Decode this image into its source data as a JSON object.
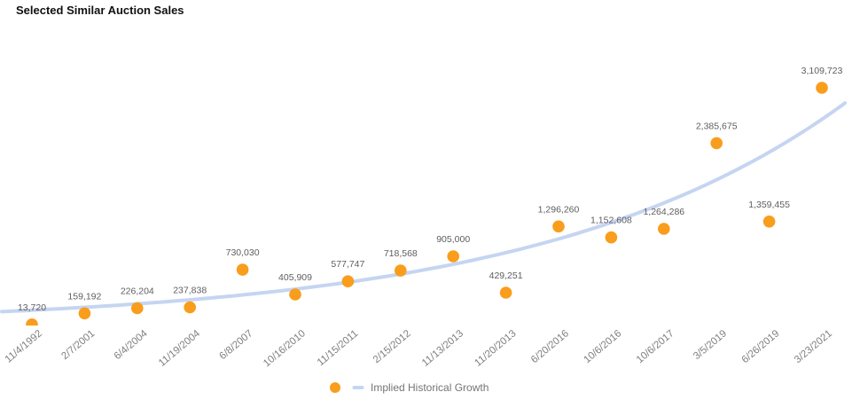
{
  "title": "Selected Similar Auction Sales",
  "legend": {
    "label": "Implied Historical Growth",
    "point_marker": "orange-dot",
    "line_marker": "blue-dash"
  },
  "colors": {
    "point": "#F99D1C",
    "trend_line": "#C5D5F1",
    "data_label": "#5E5E5E",
    "axis_label": "#7F7F7F",
    "legend_label": "#757575",
    "title": "#111111",
    "background": "#FFFFFF"
  },
  "chart_data": {
    "type": "scatter",
    "title": "Selected Similar Auction Sales",
    "xlabel": "",
    "ylabel": "",
    "grid": false,
    "y_axis_visible": false,
    "legend_position": "bottom",
    "x_tick_rotation_deg": -40,
    "categories": [
      "11/4/1992",
      "2/7/2001",
      "6/4/2004",
      "11/19/2004",
      "6/8/2007",
      "10/16/2010",
      "11/15/2011",
      "2/15/2012",
      "11/13/2013",
      "11/20/2013",
      "6/20/2016",
      "10/6/2016",
      "10/6/2017",
      "3/5/2019",
      "6/26/2019",
      "3/23/2021"
    ],
    "points": [
      {
        "date": "11/4/1992",
        "value": 13720,
        "label": "13,720"
      },
      {
        "date": "2/7/2001",
        "value": 159192,
        "label": "159,192"
      },
      {
        "date": "6/4/2004",
        "value": 226204,
        "label": "226,204"
      },
      {
        "date": "11/19/2004",
        "value": 237838,
        "label": "237,838"
      },
      {
        "date": "6/8/2007",
        "value": 730030,
        "label": "730,030"
      },
      {
        "date": "10/16/2010",
        "value": 405909,
        "label": "405,909"
      },
      {
        "date": "11/15/2011",
        "value": 577747,
        "label": "577,747"
      },
      {
        "date": "2/15/2012",
        "value": 718568,
        "label": "718,568"
      },
      {
        "date": "11/13/2013",
        "value": 905000,
        "label": "905,000"
      },
      {
        "date": "11/20/2013",
        "value": 429251,
        "label": "429,251"
      },
      {
        "date": "6/20/2016",
        "value": 1296260,
        "label": "1,296,260"
      },
      {
        "date": "10/6/2016",
        "value": 1152608,
        "label": "1,152,608"
      },
      {
        "date": "10/6/2017",
        "value": 1264286,
        "label": "1,264,286"
      },
      {
        "date": "3/5/2019",
        "value": 2385675,
        "label": "2,385,675"
      },
      {
        "date": "6/26/2019",
        "value": 1359455,
        "label": "1,359,455"
      },
      {
        "date": "3/23/2021",
        "value": 3109723,
        "label": "3,109,723"
      }
    ],
    "trend": {
      "label": "Implied Historical Growth",
      "shape": "exponential",
      "start_value": 180000,
      "end_value": 2910000
    },
    "ylim": [
      0,
      3200000
    ]
  }
}
